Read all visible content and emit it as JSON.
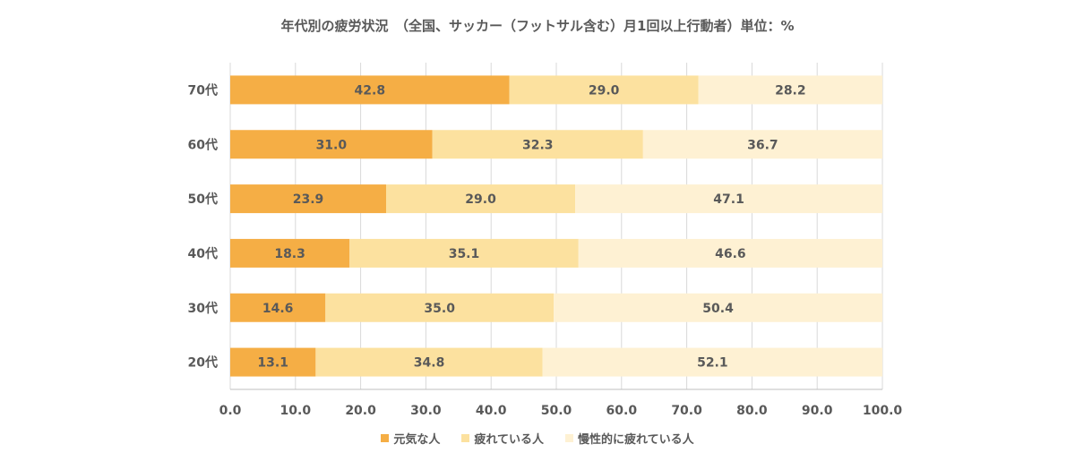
{
  "chart_data": {
    "type": "bar",
    "orientation": "horizontal",
    "stacked": true,
    "title": "年代別の疲労状況　（全国、サッカー（フットサル含む）月1回以上行動者）単位：%",
    "categories": [
      "70代",
      "60代",
      "50代",
      "40代",
      "30代",
      "20代"
    ],
    "series": [
      {
        "name": "元気な人",
        "color": "#F5AE45",
        "values": [
          42.8,
          31.0,
          23.9,
          18.3,
          14.6,
          13.1
        ]
      },
      {
        "name": "疲れている人",
        "color": "#FCE19F",
        "values": [
          29.0,
          32.3,
          29.0,
          35.1,
          35.0,
          34.8
        ]
      },
      {
        "name": "慢性的に疲れている人",
        "color": "#FEF1D3",
        "values": [
          28.2,
          36.7,
          47.1,
          46.6,
          50.4,
          52.1
        ]
      }
    ],
    "xlim": [
      0,
      100
    ],
    "xticks": [
      "0.0",
      "10.0",
      "20.0",
      "30.0",
      "40.0",
      "50.0",
      "60.0",
      "70.0",
      "80.0",
      "90.0",
      "100.0"
    ],
    "grid": true,
    "legend_position": "bottom"
  }
}
